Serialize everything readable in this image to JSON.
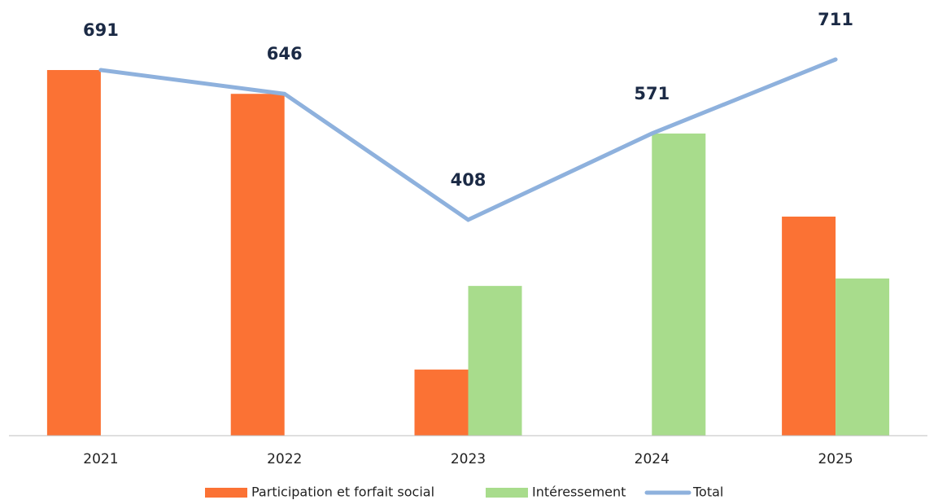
{
  "chart_data": {
    "type": "bar",
    "categories": [
      "2021",
      "2022",
      "2023",
      "2024",
      "2025"
    ],
    "series": [
      {
        "name": "Participation et forfait social",
        "color": "#fb7234",
        "values": [
          691,
          646,
          125,
          0,
          414
        ]
      },
      {
        "name": "Intéressement",
        "color": "#a8dc8c",
        "values": [
          0,
          0,
          283,
          571,
          297
        ]
      },
      {
        "name": "Total",
        "color": "#8eb1dd",
        "type": "line",
        "values": [
          691,
          646,
          408,
          571,
          711
        ]
      }
    ],
    "legend": "bottom"
  }
}
